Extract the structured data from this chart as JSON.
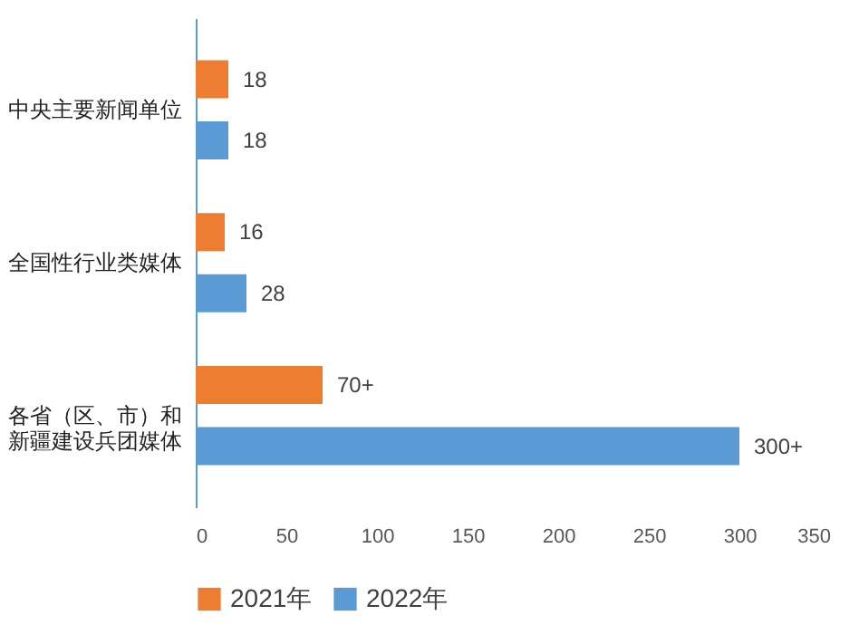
{
  "chart_data": {
    "type": "bar",
    "orientation": "horizontal",
    "categories": [
      "中央主要新闻单位",
      "全国性行业类媒体",
      "各省（区、市）和新疆建设兵团媒体"
    ],
    "series": [
      {
        "name": "2021年",
        "color": "#ed7d31",
        "values": [
          18,
          16,
          70
        ],
        "value_labels": [
          "18",
          "16",
          "70+"
        ]
      },
      {
        "name": "2022年",
        "color": "#5b9bd5",
        "values": [
          18,
          28,
          300
        ],
        "value_labels": [
          "18",
          "28",
          "300+"
        ]
      }
    ],
    "xlim": [
      0,
      350
    ],
    "xticks": [
      0,
      50,
      100,
      150,
      200,
      250,
      300,
      350
    ],
    "grid": false,
    "legend": "bottom"
  }
}
